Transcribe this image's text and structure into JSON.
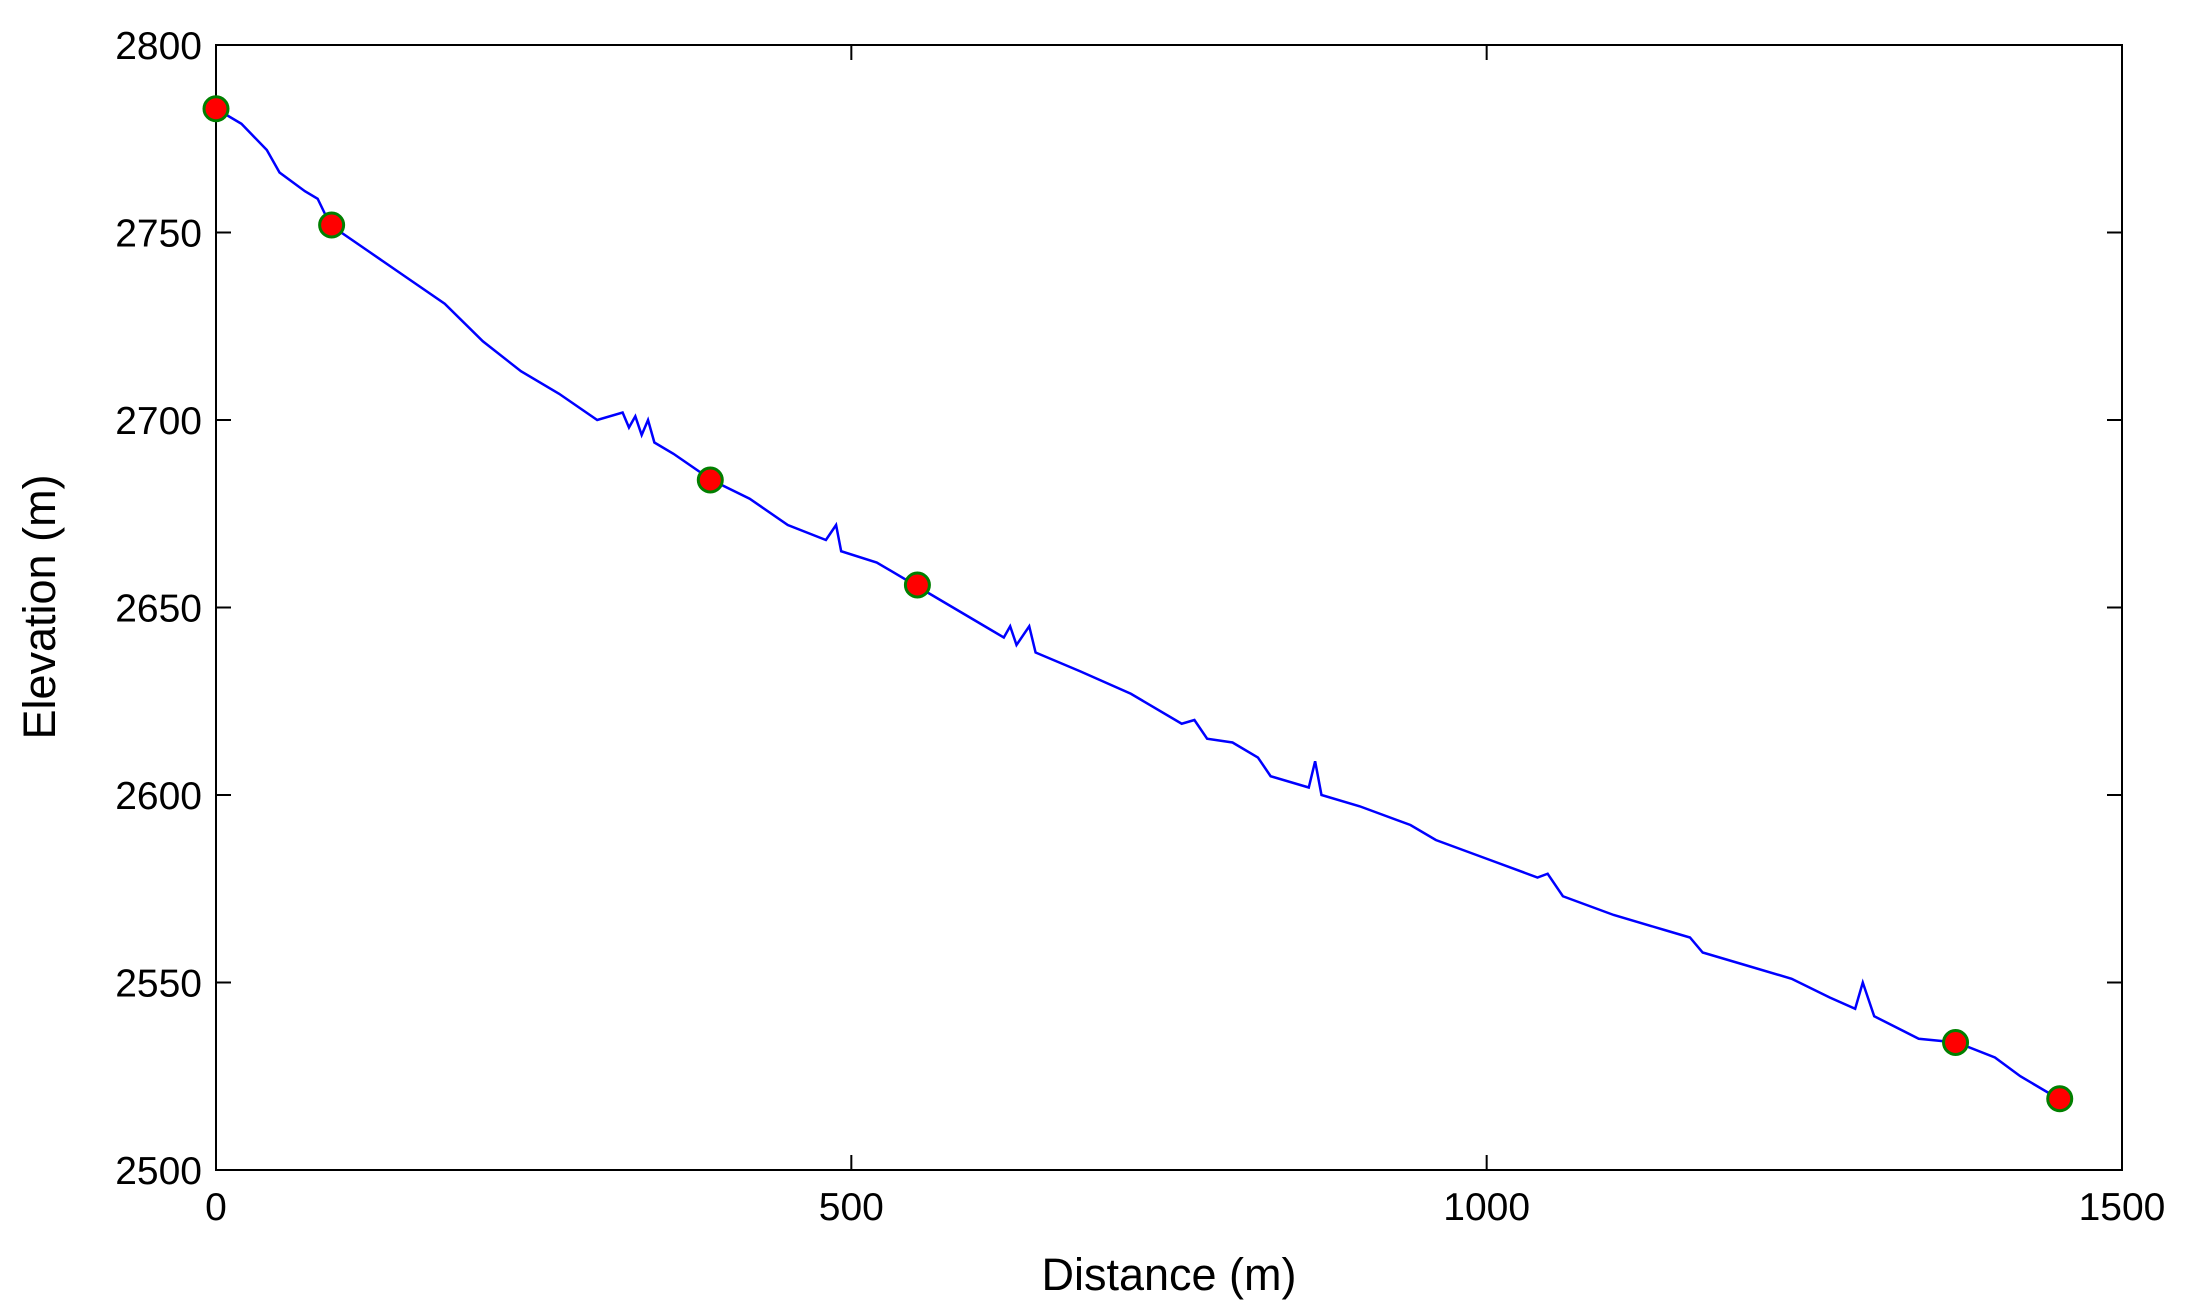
{
  "chart_data": {
    "type": "line",
    "xlabel": "Distance (m)",
    "ylabel": "Elevation (m)",
    "xlim": [
      0,
      1500
    ],
    "xticks": [
      0,
      500,
      1000,
      1500
    ],
    "ylim": [
      2500,
      2800
    ],
    "yticks": [
      2500,
      2550,
      2600,
      2650,
      2700,
      2750,
      2800
    ],
    "grid": false,
    "series": [
      {
        "style": "line",
        "color": "#0000ff",
        "x": [
          0,
          20,
          40,
          50,
          70,
          80,
          90,
          120,
          150,
          180,
          210,
          240,
          270,
          300,
          320,
          325,
          330,
          335,
          340,
          345,
          360,
          390,
          420,
          450,
          480,
          488,
          492,
          520,
          550,
          580,
          610,
          620,
          625,
          630,
          640,
          645,
          680,
          720,
          760,
          770,
          780,
          800,
          820,
          830,
          860,
          865,
          870,
          900,
          940,
          960,
          1000,
          1040,
          1048,
          1060,
          1100,
          1140,
          1160,
          1170,
          1200,
          1240,
          1270,
          1290,
          1296,
          1305,
          1340,
          1370,
          1400,
          1420,
          1450
        ],
        "values": [
          2783,
          2779,
          2772,
          2766,
          2761,
          2759,
          2752,
          2745,
          2738,
          2731,
          2721,
          2713,
          2707,
          2700,
          2702,
          2698,
          2701,
          2696,
          2700,
          2694,
          2691,
          2684,
          2679,
          2672,
          2668,
          2672,
          2665,
          2662,
          2656,
          2650,
          2644,
          2642,
          2645,
          2640,
          2645,
          2638,
          2633,
          2627,
          2619,
          2620,
          2615,
          2614,
          2610,
          2605,
          2602,
          2609,
          2600,
          2597,
          2592,
          2588,
          2583,
          2578,
          2579,
          2573,
          2568,
          2564,
          2562,
          2558,
          2555,
          2551,
          2546,
          2543,
          2550,
          2541,
          2535,
          2534,
          2530,
          2525,
          2519
        ]
      },
      {
        "style": "markers",
        "color": "#ff0000",
        "edgecolor": "#008000",
        "x": [
          0,
          91,
          389,
          552,
          1369,
          1451
        ],
        "values": [
          2783,
          2752,
          2684,
          2656,
          2534,
          2519
        ]
      }
    ]
  }
}
